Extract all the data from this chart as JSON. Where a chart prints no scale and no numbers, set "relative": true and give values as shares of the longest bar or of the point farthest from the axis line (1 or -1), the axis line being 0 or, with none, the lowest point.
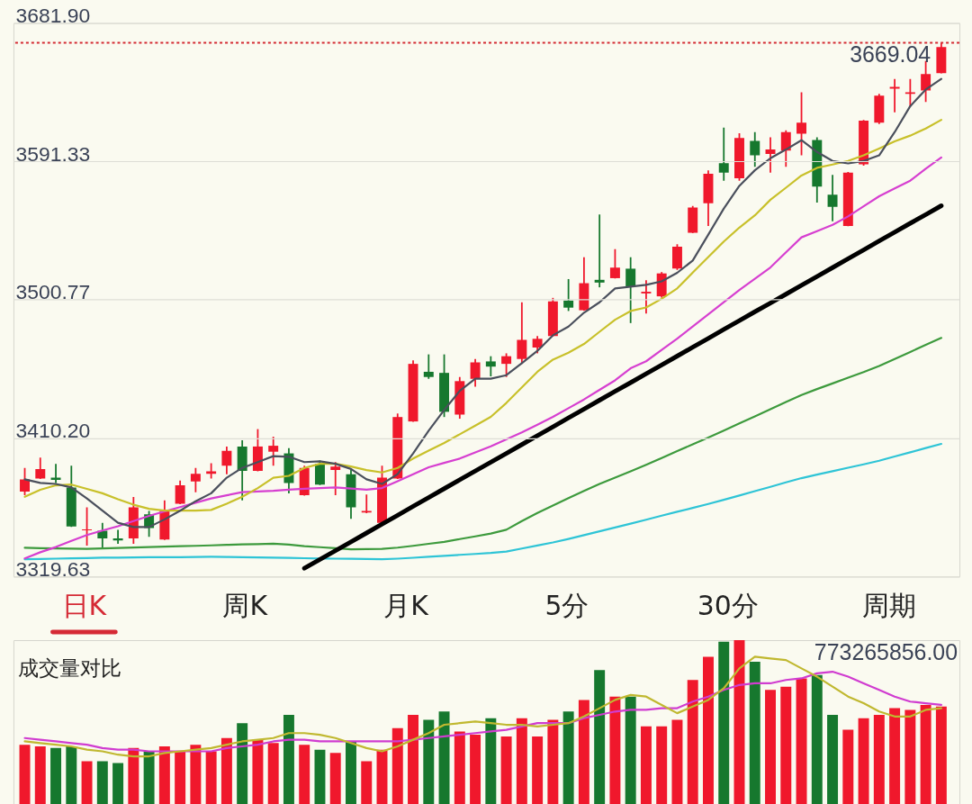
{
  "chart_data": [
    {
      "type": "candlestick",
      "categories": [
        null,
        null,
        null,
        null,
        null,
        null,
        null,
        null,
        null,
        null,
        null,
        null,
        null,
        null,
        null,
        null,
        null,
        null,
        null,
        null,
        null,
        null,
        null,
        null,
        null,
        null,
        null,
        null,
        null,
        null,
        null,
        null,
        null,
        null,
        null,
        null,
        null,
        null,
        null,
        null,
        null,
        null,
        null,
        null,
        null,
        null,
        null,
        null,
        null,
        null,
        null,
        null,
        null,
        null,
        null,
        null,
        null,
        null,
        null,
        null
      ],
      "ohlc": [
        [
          3375.2,
          3390.6,
          3372.9,
          3383.1
        ],
        [
          3383.8,
          3397.4,
          3383.5,
          3389.9
        ],
        [
          3384.3,
          3393.3,
          3380.8,
          3382.8
        ],
        [
          3377.9,
          3392.2,
          3352.0,
          3352.4
        ],
        [
          3349.8,
          3364.9,
          3339.9,
          3350.4
        ],
        [
          3349.5,
          3354.7,
          3337.6,
          3344.5
        ],
        [
          3344.5,
          3350.1,
          3341.0,
          3343.3
        ],
        [
          3344.5,
          3371.7,
          3341.0,
          3364.9
        ],
        [
          3360.3,
          3362.6,
          3345.6,
          3351.3
        ],
        [
          3343.8,
          3369.5,
          3343.5,
          3362.6
        ],
        [
          3367.2,
          3382.4,
          3366.9,
          3379.3
        ],
        [
          3381.9,
          3390.6,
          3374.7,
          3386.9
        ],
        [
          3386.9,
          3393.8,
          3383.8,
          3388.4
        ],
        [
          3392.2,
          3404.7,
          3386.5,
          3401.9
        ],
        [
          3404.7,
          3408.8,
          3369.5,
          3388.8
        ],
        [
          3388.8,
          3416.1,
          3388.5,
          3404.7
        ],
        [
          3401.3,
          3411.1,
          3392.2,
          3405.2
        ],
        [
          3400.2,
          3403.6,
          3374.0,
          3380.8
        ],
        [
          3372.9,
          3392.2,
          3372.6,
          3390.6
        ],
        [
          3393.3,
          3395.6,
          3379.5,
          3379.7
        ],
        [
          3389.3,
          3394.5,
          3372.9,
          3391.5
        ],
        [
          3386.5,
          3389.3,
          3357.4,
          3364.9
        ],
        [
          3361.5,
          3373.3,
          3361.0,
          3362.6
        ],
        [
          3354.7,
          3392.2,
          3354.5,
          3384.3
        ],
        [
          3383.8,
          3426.3,
          3383.5,
          3424.0
        ],
        [
          3421.1,
          3461.1,
          3420.8,
          3458.8
        ],
        [
          3453.6,
          3465.0,
          3449.0,
          3450.2
        ],
        [
          3452.9,
          3465.0,
          3424.0,
          3427.4
        ],
        [
          3425.6,
          3450.2,
          3422.9,
          3447.5
        ],
        [
          3449.0,
          3462.0,
          3443.8,
          3459.7
        ],
        [
          3460.4,
          3463.8,
          3450.6,
          3457.0
        ],
        [
          3458.8,
          3465.7,
          3450.2,
          3463.8
        ],
        [
          3462.0,
          3499.1,
          3458.8,
          3474.5
        ],
        [
          3469.5,
          3477.0,
          3465.7,
          3475.2
        ],
        [
          3477.0,
          3502.0,
          3476.8,
          3499.7
        ],
        [
          3500.2,
          3514.3,
          3493.4,
          3495.6
        ],
        [
          3493.9,
          3528.6,
          3493.6,
          3511.6
        ],
        [
          3513.8,
          3556.5,
          3508.9,
          3512.0
        ],
        [
          3514.9,
          3533.9,
          3514.7,
          3521.8
        ],
        [
          3521.1,
          3528.6,
          3485.5,
          3509.5
        ],
        [
          3504.9,
          3513.5,
          3491.7,
          3506.0
        ],
        [
          3503.0,
          3518.9,
          3502.1,
          3518.0
        ],
        [
          3521.2,
          3537.1,
          3520.3,
          3535.5
        ],
        [
          3544.6,
          3562.1,
          3544.4,
          3561.2
        ],
        [
          3563.9,
          3585.5,
          3549.1,
          3583.2
        ],
        [
          3590.1,
          3613.5,
          3578.7,
          3583.9
        ],
        [
          3580.3,
          3609.8,
          3578.7,
          3606.6
        ],
        [
          3604.8,
          3610.5,
          3587.8,
          3595.3
        ],
        [
          3596.2,
          3607.1,
          3583.9,
          3599.1
        ],
        [
          3598.4,
          3611.6,
          3587.8,
          3610.5
        ],
        [
          3609.4,
          3636.6,
          3595.3,
          3616.6
        ],
        [
          3605.3,
          3607.1,
          3564.4,
          3574.8
        ],
        [
          3569.6,
          3582.5,
          3552.1,
          3561.6
        ],
        [
          3549.1,
          3584.4,
          3548.9,
          3583.9
        ],
        [
          3589.4,
          3618.4,
          3588.5,
          3618.0
        ],
        [
          3616.6,
          3635.5,
          3615.8,
          3634.4
        ],
        [
          3638.9,
          3645.3,
          3623.4,
          3640.1
        ],
        [
          3635.5,
          3645.3,
          3627.1,
          3636.6
        ],
        [
          3637.8,
          3657.1,
          3630.3,
          3648.5
        ],
        [
          3649.1,
          3669.04,
          3648.9,
          3666.2
        ]
      ],
      "colors": [
        "#f0182c",
        "#f0182c",
        "#16782e",
        "#16782e",
        "#f0182c",
        "#16782e",
        "#16782e",
        "#f0182c",
        "#16782e",
        "#f0182c",
        "#f0182c",
        "#f0182c",
        "#f0182c",
        "#f0182c",
        "#16782e",
        "#f0182c",
        "#f0182c",
        "#16782e",
        "#f0182c",
        "#16782e",
        "#f0182c",
        "#16782e",
        "#f0182c",
        "#f0182c",
        "#f0182c",
        "#f0182c",
        "#16782e",
        "#16782e",
        "#f0182c",
        "#f0182c",
        "#16782e",
        "#f0182c",
        "#f0182c",
        "#f0182c",
        "#f0182c",
        "#16782e",
        "#f0182c",
        "#16782e",
        "#f0182c",
        "#16782e",
        "#f0182c",
        "#f0182c",
        "#f0182c",
        "#f0182c",
        "#f0182c",
        "#16782e",
        "#f0182c",
        "#16782e",
        "#f0182c",
        "#f0182c",
        "#f0182c",
        "#16782e",
        "#16782e",
        "#f0182c",
        "#f0182c",
        "#f0182c",
        "#f0182c",
        "#f0182c",
        "#f0182c",
        "#f0182c"
      ],
      "series": [
        {
          "type": "line",
          "color": "#2ec4d6",
          "values": [
            3330.9,
            3331.1,
            3331.3,
            3331.5,
            3331.7,
            3331.9,
            3332.0,
            3332.1,
            3332.2,
            3332.3,
            3332.3,
            3332.4,
            3332.5,
            3332.4,
            3332.2,
            3332.1,
            3331.9,
            3331.8,
            3331.6,
            3331.4,
            3331.3,
            3331.2,
            3331.1,
            3330.9,
            3331.3,
            3331.9,
            3332.5,
            3333.1,
            3333.8,
            3334.4,
            3335.0,
            3335.9,
            3337.9,
            3339.9,
            3341.9,
            3344.2,
            3346.7,
            3349.2,
            3351.7,
            3354.2,
            3356.8,
            3359.4,
            3362.0,
            3364.5,
            3367.1,
            3369.8,
            3372.6,
            3375.5,
            3378.3,
            3381.2,
            3384.0,
            3386.3,
            3388.5,
            3390.8,
            3393.0,
            3395.4,
            3398.2,
            3400.9,
            3403.7,
            3406.4
          ]
        },
        {
          "type": "line",
          "color": "#3d9a3d",
          "values": [
            3338.4,
            3338.2,
            3338.0,
            3337.9,
            3337.7,
            3338.0,
            3338.3,
            3338.6,
            3338.9,
            3339.2,
            3339.5,
            3339.7,
            3340.0,
            3340.3,
            3340.6,
            3340.8,
            3341.1,
            3340.5,
            3339.5,
            3338.8,
            3338.1,
            3337.4,
            3337.5,
            3337.7,
            3338.5,
            3339.7,
            3341.0,
            3342.3,
            3344.1,
            3345.9,
            3347.7,
            3350.2,
            3355.9,
            3361.2,
            3366.0,
            3370.9,
            3375.6,
            3380.2,
            3384.3,
            3388.4,
            3392.7,
            3397.2,
            3401.7,
            3406.1,
            3410.6,
            3415.1,
            3419.8,
            3424.4,
            3429.1,
            3433.8,
            3438.4,
            3442.3,
            3446.0,
            3449.7,
            3453.4,
            3457.4,
            3462.0,
            3466.6,
            3471.2,
            3475.8
          ]
        },
        {
          "type": "line",
          "color": "#000000",
          "values": [
            null,
            null,
            null,
            null,
            null,
            null,
            null,
            null,
            null,
            null,
            null,
            null,
            null,
            null,
            null,
            null,
            null,
            null,
            3325.0,
            3330.8,
            3336.5,
            3342.3,
            3348.1,
            3353.9,
            3359.7,
            3365.5,
            3371.3,
            3377.1,
            3382.9,
            3388.7,
            3394.4,
            3400.2,
            3406.0,
            3411.8,
            3417.6,
            3423.4,
            3429.2,
            3435.0,
            3440.8,
            3446.5,
            3452.3,
            3458.1,
            3463.9,
            3469.7,
            3475.5,
            3481.3,
            3487.1,
            3492.9,
            3498.6,
            3504.4,
            3510.2,
            3516.0,
            3521.8,
            3527.6,
            3533.4,
            3539.2,
            3545.0,
            3550.8,
            3556.5,
            3562.3
          ]
        },
        {
          "type": "line",
          "color": "#d63fd0",
          "values": [
            3331.5,
            3335.5,
            3338.9,
            3342.9,
            3346.8,
            3349.7,
            3352.5,
            3355.9,
            3359.3,
            3362.2,
            3365.0,
            3367.9,
            3370.7,
            3372.8,
            3374.8,
            3375.3,
            3375.7,
            3376.4,
            3377.0,
            3377.5,
            3377.9,
            3377.2,
            3376.4,
            3377.5,
            3382.0,
            3386.6,
            3391.1,
            3394.0,
            3396.8,
            3400.8,
            3404.8,
            3409.4,
            3413.9,
            3419.0,
            3424.1,
            3429.8,
            3435.5,
            3441.8,
            3448.0,
            3455.9,
            3460.5,
            3467.9,
            3475.3,
            3483.3,
            3491.2,
            3499.2,
            3507.1,
            3514.5,
            3521.9,
            3531.8,
            3541.6,
            3545.7,
            3549.8,
            3555.3,
            3561.9,
            3568.5,
            3573.6,
            3578.7,
            3586.6,
            3593.9
          ]
        },
        {
          "type": "line",
          "color": "#c8c02a",
          "values": [
            3371.8,
            3376.4,
            3379.3,
            3379.8,
            3377.0,
            3374.1,
            3370.2,
            3366.6,
            3363.9,
            3362.7,
            3362.7,
            3362.7,
            3363.2,
            3367.3,
            3371.8,
            3377.5,
            3384.3,
            3385.5,
            3390.7,
            3393.4,
            3393.4,
            3391.6,
            3389.3,
            3387.7,
            3390.7,
            3396.8,
            3402.0,
            3407.0,
            3412.7,
            3418.4,
            3424.1,
            3433.2,
            3443.4,
            3453.6,
            3461.6,
            3466.1,
            3471.8,
            3479.8,
            3487.7,
            3493.4,
            3495.7,
            3501.4,
            3508.2,
            3518.5,
            3528.7,
            3538.9,
            3548.0,
            3556.0,
            3566.2,
            3574.1,
            3582.1,
            3587.1,
            3589.3,
            3591.6,
            3595.3,
            3599.8,
            3604.4,
            3608.2,
            3612.8,
            3618.5
          ]
        },
        {
          "type": "line",
          "color": "#4a4f5c",
          "values": [
            3383.2,
            3380.9,
            3380.2,
            3377.9,
            3370.7,
            3362.7,
            3354.8,
            3352.0,
            3352.0,
            3357.0,
            3362.7,
            3368.9,
            3374.1,
            3384.3,
            3390.7,
            3394.5,
            3398.4,
            3398.0,
            3394.5,
            3395.0,
            3393.4,
            3390.0,
            3383.2,
            3380.2,
            3386.6,
            3400.2,
            3415.0,
            3428.6,
            3441.1,
            3449.1,
            3449.1,
            3451.4,
            3459.3,
            3467.3,
            3477.5,
            3483.2,
            3492.3,
            3499.1,
            3508.2,
            3509.3,
            3510.5,
            3512.8,
            3518.4,
            3526.4,
            3543.4,
            3560.5,
            3575.3,
            3585.5,
            3593.4,
            3599.1,
            3605.2,
            3597.5,
            3591.6,
            3590.0,
            3591.6,
            3595.3,
            3610.5,
            3627.5,
            3638.4,
            3645.3
          ]
        }
      ],
      "ylim": [
        3319.63,
        3681.9
      ],
      "yticks": [
        3319.63,
        {
          "value": 3410.2,
          "label": "3410.20"
        },
        3500.77,
        3591.33,
        {
          "value": 3681.9,
          "label": "3681.90"
        }
      ],
      "grid": "y",
      "ref_lines": [
        {
          "axis": "y",
          "value": 3669.04,
          "label": "3669.04",
          "color": "#d42a32",
          "line_style": "dotted"
        }
      ]
    },
    {
      "type": "other",
      "annotations": [
        "日K",
        "周K",
        "月K",
        "5分",
        "30分",
        "周期"
      ]
    },
    {
      "type": "bar",
      "title": "成交量对比",
      "categories": [
        null,
        null,
        null,
        null,
        null,
        null,
        null,
        null,
        null,
        null,
        null,
        null,
        null,
        null,
        null,
        null,
        null,
        null,
        null,
        null,
        null,
        null,
        null,
        null,
        null,
        null,
        null,
        null,
        null,
        null,
        null,
        null,
        null,
        null,
        null,
        null,
        null,
        null,
        null,
        null,
        null,
        null,
        null,
        null,
        null,
        null,
        null,
        null,
        null,
        null,
        null,
        null,
        null,
        null,
        null,
        null,
        null,
        null,
        null,
        null
      ],
      "relative": true,
      "values": [
        0.37,
        0.36,
        0.35,
        0.36,
        0.27,
        0.27,
        0.26,
        0.35,
        0.33,
        0.36,
        0.33,
        0.37,
        0.33,
        0.41,
        0.5,
        0.4,
        0.38,
        0.55,
        0.37,
        0.34,
        0.32,
        0.39,
        0.27,
        0.34,
        0.47,
        0.55,
        0.52,
        0.57,
        0.45,
        0.43,
        0.53,
        0.42,
        0.53,
        0.42,
        0.52,
        0.57,
        0.64,
        0.82,
        0.66,
        0.66,
        0.48,
        0.48,
        0.52,
        0.76,
        0.9,
        0.99,
        1,
        0.87,
        0.7,
        0.72,
        0.77,
        0.79,
        0.55,
        0.46,
        0.53,
        0.55,
        0.59,
        0.58,
        0.61,
        0.6
      ],
      "colors": [
        "#f0182c",
        "#f0182c",
        "#16782e",
        "#16782e",
        "#f0182c",
        "#16782e",
        "#16782e",
        "#f0182c",
        "#16782e",
        "#f0182c",
        "#f0182c",
        "#f0182c",
        "#f0182c",
        "#f0182c",
        "#16782e",
        "#f0182c",
        "#f0182c",
        "#16782e",
        "#f0182c",
        "#16782e",
        "#f0182c",
        "#16782e",
        "#f0182c",
        "#f0182c",
        "#f0182c",
        "#f0182c",
        "#16782e",
        "#16782e",
        "#f0182c",
        "#f0182c",
        "#16782e",
        "#f0182c",
        "#f0182c",
        "#f0182c",
        "#f0182c",
        "#16782e",
        "#f0182c",
        "#16782e",
        "#f0182c",
        "#16782e",
        "#f0182c",
        "#f0182c",
        "#f0182c",
        "#f0182c",
        "#f0182c",
        "#16782e",
        "#f0182c",
        "#16782e",
        "#f0182c",
        "#f0182c",
        "#f0182c",
        "#16782e",
        "#16782e",
        "#f0182c",
        "#f0182c",
        "#f0182c",
        "#f0182c",
        "#f0182c",
        "#f0182c",
        "#f0182c"
      ],
      "series": [
        {
          "type": "line",
          "color": "#d03cd0",
          "values": [
            0.41,
            0.4,
            0.39,
            0.38,
            0.37,
            0.35,
            0.34,
            0.34,
            0.33,
            0.33,
            0.33,
            0.33,
            0.33,
            0.35,
            0.36,
            0.37,
            0.39,
            0.4,
            0.4,
            0.39,
            0.39,
            0.39,
            0.39,
            0.39,
            0.39,
            0.4,
            0.41,
            0.42,
            0.43,
            0.44,
            0.45,
            0.46,
            0.48,
            0.5,
            0.5,
            0.5,
            0.53,
            0.55,
            0.57,
            0.58,
            0.58,
            0.59,
            0.59,
            0.63,
            0.66,
            0.7,
            0.73,
            0.74,
            0.74,
            0.76,
            0.77,
            0.8,
            0.81,
            0.78,
            0.74,
            0.7,
            0.66,
            0.63,
            0.62,
            0.61
          ]
        },
        {
          "type": "line",
          "color": "#c0b830",
          "values": [
            0.39,
            0.38,
            0.37,
            0.36,
            0.34,
            0.33,
            0.31,
            0.3,
            0.3,
            0.32,
            0.33,
            0.34,
            0.35,
            0.37,
            0.39,
            0.4,
            0.41,
            0.44,
            0.44,
            0.43,
            0.41,
            0.38,
            0.35,
            0.33,
            0.36,
            0.4,
            0.44,
            0.49,
            0.5,
            0.51,
            0.5,
            0.49,
            0.49,
            0.48,
            0.49,
            0.5,
            0.54,
            0.59,
            0.64,
            0.67,
            0.66,
            0.61,
            0.56,
            0.6,
            0.64,
            0.71,
            0.83,
            0.9,
            0.89,
            0.88,
            0.83,
            0.78,
            0.72,
            0.66,
            0.62,
            0.57,
            0.54,
            0.54,
            0.58,
            0.59
          ]
        }
      ],
      "annotations": [
        "773265856.00"
      ]
    }
  ]
}
